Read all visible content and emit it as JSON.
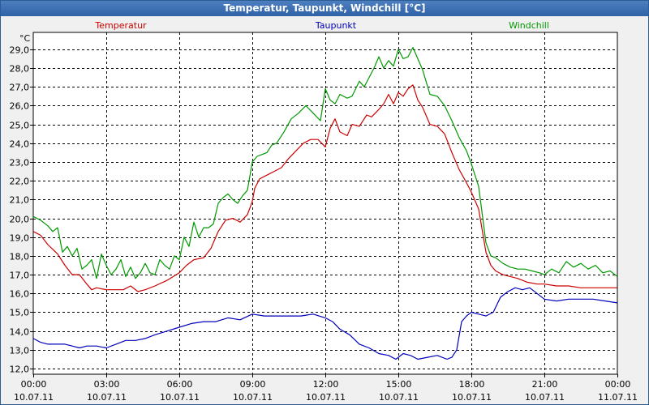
{
  "window": {
    "title": "Temperatur, Taupunkt, Windchill [°C]"
  },
  "chart_data": {
    "type": "line",
    "title": "Temperatur, Taupunkt, Windchill [°C]",
    "ylabel": "°C",
    "xlabel": "",
    "ylim": [
      11.7,
      29.9
    ],
    "xlim": [
      0,
      24
    ],
    "grid": true,
    "yticks": [
      {
        "v": 12.0,
        "label": "12,0"
      },
      {
        "v": 13.0,
        "label": "13,0"
      },
      {
        "v": 14.0,
        "label": "14,0"
      },
      {
        "v": 15.0,
        "label": "15,0"
      },
      {
        "v": 16.0,
        "label": "16,0"
      },
      {
        "v": 17.0,
        "label": "17,0"
      },
      {
        "v": 18.0,
        "label": "18,0"
      },
      {
        "v": 19.0,
        "label": "19,0"
      },
      {
        "v": 20.0,
        "label": "20,0"
      },
      {
        "v": 21.0,
        "label": "21,0"
      },
      {
        "v": 22.0,
        "label": "22,0"
      },
      {
        "v": 23.0,
        "label": "23,0"
      },
      {
        "v": 24.0,
        "label": "24,0"
      },
      {
        "v": 25.0,
        "label": "25,0"
      },
      {
        "v": 26.0,
        "label": "26,0"
      },
      {
        "v": 27.0,
        "label": "27,0"
      },
      {
        "v": 28.0,
        "label": "28,0"
      },
      {
        "v": 29.0,
        "label": "29,0"
      }
    ],
    "xticks": [
      {
        "h": 0,
        "time": "00:00",
        "date": "10.07.11"
      },
      {
        "h": 3,
        "time": "03:00",
        "date": "10.07.11"
      },
      {
        "h": 6,
        "time": "06:00",
        "date": "10.07.11"
      },
      {
        "h": 9,
        "time": "09:00",
        "date": "10.07.11"
      },
      {
        "h": 12,
        "time": "12:00",
        "date": "10.07.11"
      },
      {
        "h": 15,
        "time": "15:00",
        "date": "10.07.11"
      },
      {
        "h": 18,
        "time": "18:00",
        "date": "10.07.11"
      },
      {
        "h": 21,
        "time": "21:00",
        "date": "10.07.11"
      },
      {
        "h": 24,
        "time": "00:00",
        "date": "11.07.11"
      }
    ],
    "series": [
      {
        "name": "Temperatur",
        "color": "#cc0000",
        "x": [
          0,
          0.3,
          0.6,
          1.0,
          1.3,
          1.6,
          1.9,
          2.2,
          2.4,
          2.6,
          3.0,
          3.4,
          3.7,
          4.0,
          4.3,
          4.6,
          5.0,
          5.5,
          6.0,
          6.3,
          6.6,
          7.0,
          7.3,
          7.6,
          7.9,
          8.2,
          8.5,
          8.8,
          9.0,
          9.1,
          9.3,
          9.6,
          9.9,
          10.2,
          10.5,
          10.8,
          11.1,
          11.4,
          11.7,
          12.0,
          12.2,
          12.4,
          12.6,
          12.9,
          13.1,
          13.4,
          13.7,
          13.9,
          14.2,
          14.4,
          14.6,
          14.8,
          15.0,
          15.2,
          15.4,
          15.6,
          15.8,
          16.0,
          16.3,
          16.6,
          16.9,
          17.2,
          17.5,
          17.8,
          18.0,
          18.3,
          18.6,
          18.8,
          19.0,
          19.3,
          19.6,
          19.9,
          20.3,
          20.7,
          21.0,
          21.5,
          22.0,
          22.5,
          23.0,
          23.5,
          24.0
        ],
        "values": [
          19.3,
          19.1,
          18.6,
          18.1,
          17.5,
          17.0,
          17.0,
          16.5,
          16.2,
          16.3,
          16.2,
          16.2,
          16.2,
          16.4,
          16.1,
          16.2,
          16.4,
          16.7,
          17.1,
          17.5,
          17.8,
          17.9,
          18.4,
          19.3,
          19.9,
          20.0,
          19.8,
          20.2,
          20.9,
          21.6,
          22.1,
          22.3,
          22.5,
          22.7,
          23.2,
          23.6,
          24.0,
          24.2,
          24.2,
          23.8,
          24.8,
          25.3,
          24.6,
          24.4,
          25.0,
          24.9,
          25.5,
          25.4,
          25.8,
          26.1,
          26.6,
          26.1,
          26.7,
          26.5,
          26.9,
          27.1,
          26.3,
          25.9,
          25.0,
          24.9,
          24.5,
          23.5,
          22.6,
          21.9,
          21.4,
          20.5,
          18.2,
          17.5,
          17.2,
          17.0,
          16.9,
          16.8,
          16.6,
          16.5,
          16.5,
          16.4,
          16.4,
          16.3,
          16.3,
          16.3,
          16.3
        ]
      },
      {
        "name": "Taupunkt",
        "color": "#0000bb",
        "x": [
          0,
          0.3,
          0.6,
          1.0,
          1.3,
          1.6,
          1.9,
          2.2,
          2.6,
          3.0,
          3.4,
          3.8,
          4.2,
          4.6,
          5.0,
          5.5,
          6.0,
          6.5,
          7.0,
          7.5,
          8.0,
          8.5,
          9.0,
          9.5,
          10.0,
          10.5,
          11.0,
          11.5,
          12.0,
          12.3,
          12.6,
          13.0,
          13.4,
          13.8,
          14.2,
          14.6,
          14.9,
          15.2,
          15.5,
          15.8,
          16.2,
          16.6,
          17.0,
          17.2,
          17.4,
          17.6,
          17.8,
          18.0,
          18.3,
          18.6,
          18.9,
          19.2,
          19.5,
          19.8,
          20.1,
          20.4,
          20.7,
          21.0,
          21.5,
          22.0,
          22.5,
          23.0,
          23.5,
          24.0
        ],
        "values": [
          13.6,
          13.4,
          13.3,
          13.3,
          13.3,
          13.2,
          13.1,
          13.2,
          13.2,
          13.1,
          13.3,
          13.5,
          13.5,
          13.6,
          13.8,
          14.0,
          14.2,
          14.4,
          14.5,
          14.5,
          14.7,
          14.6,
          14.9,
          14.8,
          14.8,
          14.8,
          14.8,
          14.9,
          14.7,
          14.5,
          14.1,
          13.8,
          13.3,
          13.1,
          12.8,
          12.7,
          12.5,
          12.8,
          12.7,
          12.5,
          12.6,
          12.7,
          12.5,
          12.6,
          13.0,
          14.5,
          14.8,
          15.0,
          14.9,
          14.8,
          15.0,
          15.8,
          16.1,
          16.3,
          16.2,
          16.3,
          16.0,
          15.7,
          15.6,
          15.7,
          15.7,
          15.7,
          15.6,
          15.5
        ]
      },
      {
        "name": "Windchill",
        "color": "#009900",
        "x": [
          0,
          0.3,
          0.6,
          0.8,
          1.0,
          1.2,
          1.4,
          1.6,
          1.8,
          2.0,
          2.2,
          2.4,
          2.6,
          2.8,
          3.0,
          3.2,
          3.4,
          3.6,
          3.8,
          4.0,
          4.2,
          4.4,
          4.6,
          4.8,
          5.0,
          5.2,
          5.4,
          5.6,
          5.8,
          6.0,
          6.2,
          6.4,
          6.6,
          6.8,
          7.0,
          7.2,
          7.4,
          7.6,
          7.8,
          8.0,
          8.2,
          8.4,
          8.6,
          8.8,
          9.0,
          9.2,
          9.4,
          9.6,
          9.8,
          10.0,
          10.3,
          10.6,
          10.9,
          11.2,
          11.5,
          11.8,
          12.0,
          12.2,
          12.4,
          12.6,
          12.9,
          13.1,
          13.4,
          13.6,
          13.8,
          14.0,
          14.2,
          14.4,
          14.6,
          14.8,
          15.0,
          15.2,
          15.4,
          15.6,
          15.8,
          16.0,
          16.3,
          16.6,
          16.9,
          17.2,
          17.5,
          17.8,
          18.0,
          18.3,
          18.6,
          18.8,
          19.0,
          19.3,
          19.6,
          19.9,
          20.2,
          20.5,
          20.8,
          21.0,
          21.3,
          21.6,
          21.9,
          22.2,
          22.5,
          22.8,
          23.1,
          23.4,
          23.7,
          24.0
        ],
        "values": [
          20.1,
          19.9,
          19.6,
          19.3,
          19.5,
          18.2,
          18.5,
          18.0,
          18.4,
          17.3,
          17.5,
          17.8,
          16.8,
          18.1,
          17.5,
          17.0,
          17.3,
          17.8,
          16.9,
          17.4,
          16.8,
          17.1,
          17.6,
          17.1,
          17.0,
          17.8,
          17.5,
          17.3,
          18.0,
          17.8,
          19.0,
          18.5,
          19.8,
          19.0,
          19.5,
          19.5,
          19.7,
          20.8,
          21.1,
          21.3,
          21.0,
          20.8,
          21.2,
          21.5,
          23.0,
          23.3,
          23.4,
          23.5,
          23.9,
          24.0,
          24.6,
          25.3,
          25.6,
          26.0,
          25.6,
          25.2,
          26.9,
          26.3,
          26.1,
          26.6,
          26.4,
          26.5,
          27.3,
          27.0,
          27.5,
          28.0,
          28.6,
          28.0,
          28.4,
          28.1,
          29.0,
          28.5,
          28.6,
          29.1,
          28.5,
          27.9,
          26.6,
          26.5,
          26.0,
          25.2,
          24.3,
          23.6,
          22.9,
          21.7,
          18.7,
          18.0,
          17.9,
          17.6,
          17.4,
          17.3,
          17.3,
          17.2,
          17.1,
          17.0,
          17.3,
          17.1,
          17.7,
          17.4,
          17.6,
          17.3,
          17.5,
          17.1,
          17.2,
          16.9
        ]
      }
    ]
  }
}
